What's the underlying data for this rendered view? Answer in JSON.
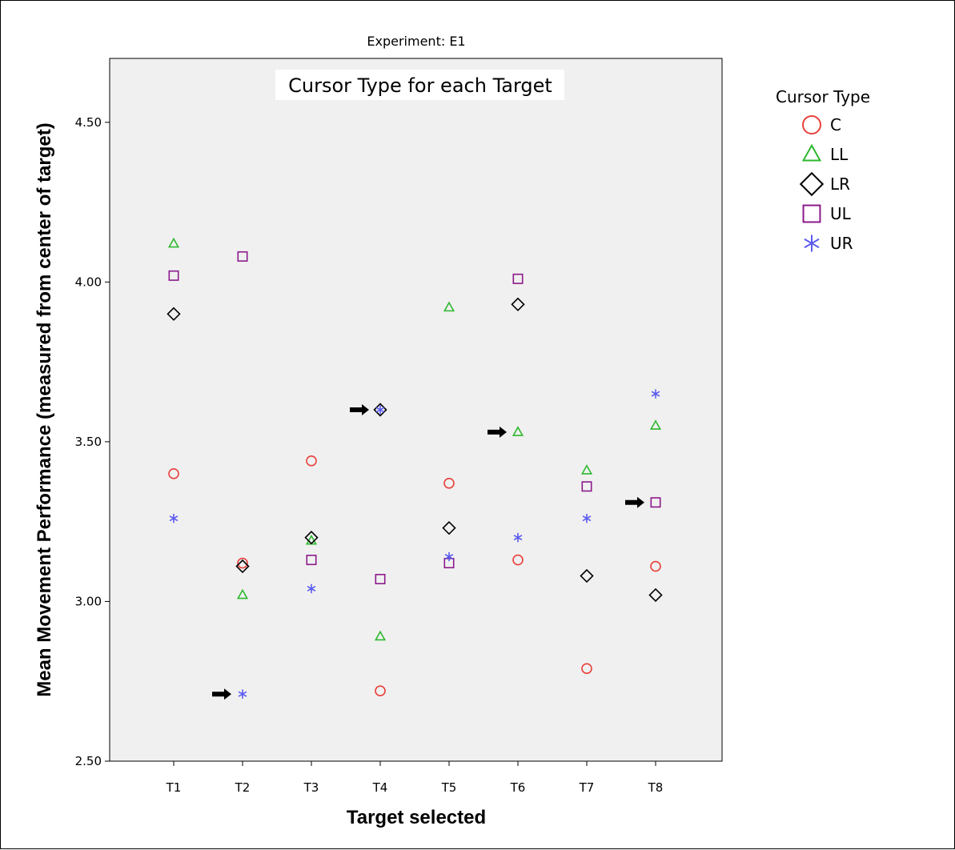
{
  "chart_data": {
    "type": "scatter",
    "title": "Experiment: E1",
    "subtitle": "Cursor Type for each Target",
    "xlabel": "Target selected",
    "ylabel": "Mean Movement Performance (measured from center of target)",
    "categories": [
      "T1",
      "T2",
      "T3",
      "T4",
      "T5",
      "T6",
      "T7",
      "T8"
    ],
    "ylim": [
      2.5,
      4.7
    ],
    "yticks": [
      "2.50",
      "3.00",
      "3.50",
      "4.00",
      "4.50"
    ],
    "legend": {
      "title": "Cursor Type",
      "position": "right"
    },
    "series": [
      {
        "name": "C",
        "marker": "circle",
        "color": "#e8403a",
        "values": [
          3.4,
          3.12,
          3.44,
          2.72,
          3.37,
          3.13,
          2.79,
          3.11
        ]
      },
      {
        "name": "LL",
        "marker": "triangle",
        "color": "#2eb82e",
        "values": [
          4.12,
          3.02,
          3.19,
          2.89,
          3.92,
          3.53,
          3.41,
          3.55
        ]
      },
      {
        "name": "LR",
        "marker": "diamond",
        "color": "#000000",
        "values": [
          3.9,
          3.11,
          3.2,
          3.6,
          3.23,
          3.93,
          3.08,
          3.02
        ]
      },
      {
        "name": "UL",
        "marker": "square",
        "color": "#8b1a8b",
        "values": [
          4.02,
          4.08,
          3.13,
          3.07,
          3.12,
          4.01,
          3.36,
          3.31
        ]
      },
      {
        "name": "UR",
        "marker": "star",
        "color": "#5b5bf0",
        "values": [
          3.26,
          2.71,
          3.04,
          3.6,
          3.14,
          3.2,
          3.26,
          3.65
        ]
      }
    ],
    "annotations": [
      {
        "type": "arrow",
        "category": "T2",
        "y": 2.71
      },
      {
        "type": "arrow",
        "category": "T4",
        "y": 3.6
      },
      {
        "type": "arrow",
        "category": "T6",
        "y": 3.53
      },
      {
        "type": "arrow",
        "category": "T8",
        "y": 3.31
      }
    ]
  }
}
